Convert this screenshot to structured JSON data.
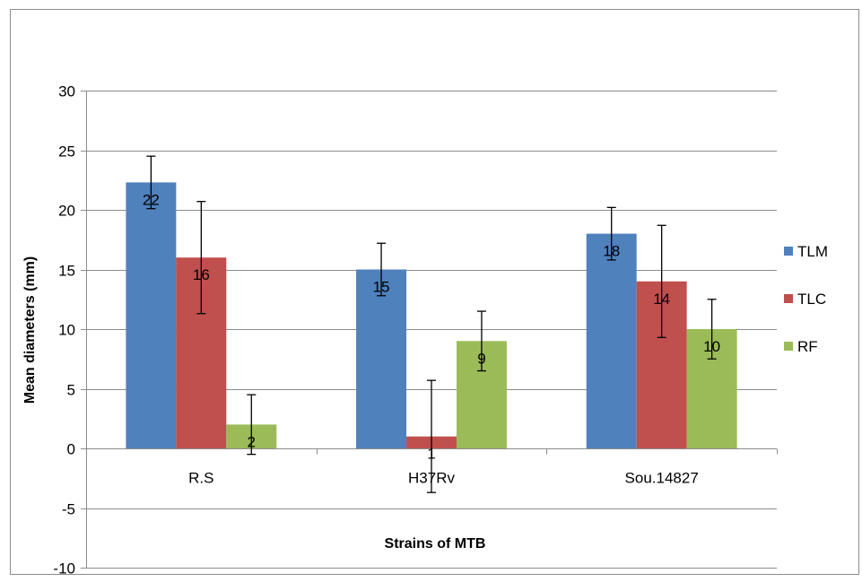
{
  "chart_data": {
    "type": "bar",
    "title": "",
    "xlabel": "Strains of MTB",
    "ylabel": "Mean diameters (mm)",
    "ylim": [
      -10,
      30
    ],
    "yticks": [
      "-10",
      "-5",
      "0",
      "5",
      "10",
      "15",
      "20",
      "25",
      "30"
    ],
    "categories": [
      "R.S",
      "H37Rv",
      "Sou.14827"
    ],
    "grid": true,
    "legend_position": "right",
    "series": [
      {
        "name": "TLM",
        "color": "#4F81BD",
        "values": [
          22.3,
          15,
          18
        ],
        "labels": [
          "22",
          "15",
          "18"
        ],
        "errors": [
          2.2,
          2.2,
          2.2
        ]
      },
      {
        "name": "TLC",
        "color": "#C0504D",
        "values": [
          16,
          1,
          14
        ],
        "labels": [
          "16",
          "1",
          "14"
        ],
        "errors": [
          4.7,
          4.7,
          4.7
        ]
      },
      {
        "name": "RF",
        "color": "#9BBB59",
        "values": [
          2,
          9,
          10
        ],
        "labels": [
          "2",
          "9",
          "10"
        ],
        "errors": [
          2.5,
          2.5,
          2.5
        ]
      }
    ]
  }
}
